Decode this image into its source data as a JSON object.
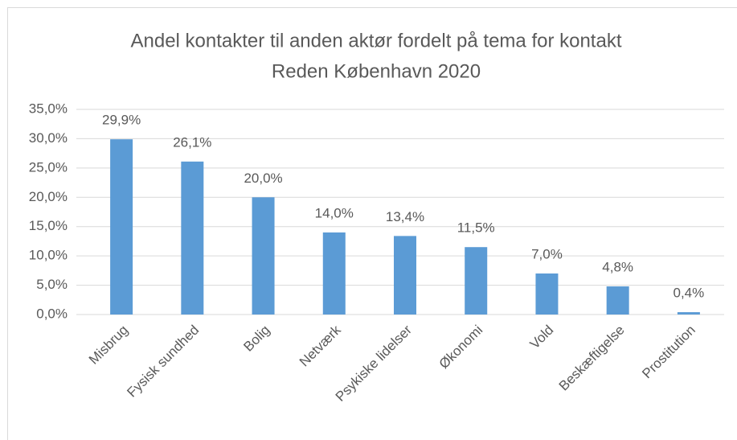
{
  "chart_data": {
    "type": "bar",
    "title": [
      "Andel kontakter til anden aktør fordelt på tema for kontakt",
      "Reden København 2020"
    ],
    "categories": [
      "Misbrug",
      "Fysisk sundhed",
      "Bolig",
      "Netværk",
      "Psykiske lidelser",
      "Økonomi",
      "Vold",
      "Beskæftigelse",
      "Prostitution"
    ],
    "values": [
      29.9,
      26.1,
      20.0,
      14.0,
      13.4,
      11.5,
      7.0,
      4.8,
      0.4
    ],
    "value_labels": [
      "29,9%",
      "26,1%",
      "20,0%",
      "14,0%",
      "13,4%",
      "11,5%",
      "7,0%",
      "4,8%",
      "0,4%"
    ],
    "color": "#5b9bd5",
    "ylim": [
      0,
      35
    ],
    "yticks": [
      {
        "value": 0,
        "label": "0,0%"
      },
      {
        "value": 5,
        "label": "5,0%"
      },
      {
        "value": 10,
        "label": "10,0%"
      },
      {
        "value": 15,
        "label": "15,0%"
      },
      {
        "value": 20,
        "label": "20,0%"
      },
      {
        "value": 25,
        "label": "25,0%"
      },
      {
        "value": 30,
        "label": "30,0%"
      },
      {
        "value": 35,
        "label": "35,0%"
      }
    ],
    "grid": true
  }
}
